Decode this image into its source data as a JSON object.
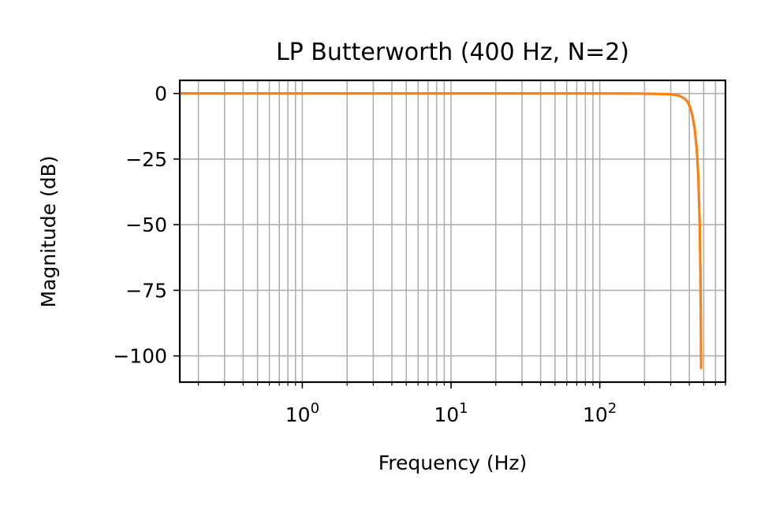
{
  "chart_data": {
    "type": "line",
    "title": "LP Butterworth (400 Hz, N=2)",
    "xlabel": "Frequency (Hz)",
    "ylabel": "Magnitude (dB)",
    "x_scale": "log",
    "xlim": [
      0.15,
      700
    ],
    "ylim": [
      -110,
      5
    ],
    "grid": true,
    "y_ticks": [
      0,
      -25,
      -50,
      -75,
      -100
    ],
    "y_tick_labels": [
      "0",
      "−25",
      "−50",
      "−75",
      "−100"
    ],
    "x_ticks": [
      1,
      10,
      100
    ],
    "x_tick_labels": [
      {
        "base": "10",
        "exp": "0"
      },
      {
        "base": "10",
        "exp": "1"
      },
      {
        "base": "10",
        "exp": "2"
      }
    ],
    "series": [
      {
        "color": "#ff7f0e",
        "x": [
          0.15,
          1,
          10,
          100,
          200,
          300,
          340,
          370,
          390,
          405,
          420,
          435,
          450,
          460,
          470,
          475,
          478,
          480
        ],
        "y": [
          0,
          0,
          0,
          0,
          -0.05,
          -0.3,
          -0.8,
          -1.8,
          -3.2,
          -5.2,
          -8.5,
          -13.5,
          -22,
          -32,
          -50,
          -68,
          -85,
          -105
        ]
      }
    ]
  }
}
